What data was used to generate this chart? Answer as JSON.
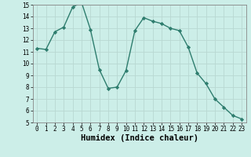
{
  "x": [
    0,
    1,
    2,
    3,
    4,
    5,
    6,
    7,
    8,
    9,
    10,
    11,
    12,
    13,
    14,
    15,
    16,
    17,
    18,
    19,
    20,
    21,
    22,
    23
  ],
  "y": [
    11.3,
    11.2,
    12.7,
    13.1,
    14.8,
    15.2,
    12.9,
    9.5,
    7.9,
    8.0,
    9.4,
    12.8,
    13.9,
    13.6,
    13.4,
    13.0,
    12.8,
    11.4,
    9.2,
    8.3,
    7.0,
    6.3,
    5.6,
    5.3
  ],
  "xlabel": "Humidex (Indice chaleur)",
  "ylim": [
    5,
    15
  ],
  "xlim": [
    -0.5,
    23.5
  ],
  "yticks": [
    5,
    6,
    7,
    8,
    9,
    10,
    11,
    12,
    13,
    14,
    15
  ],
  "xticks": [
    0,
    1,
    2,
    3,
    4,
    5,
    6,
    7,
    8,
    9,
    10,
    11,
    12,
    13,
    14,
    15,
    16,
    17,
    18,
    19,
    20,
    21,
    22,
    23
  ],
  "line_color": "#2e7d6e",
  "marker": "D",
  "marker_size": 2.2,
  "bg_color": "#cceee8",
  "grid_color": "#b8d8d2",
  "xlabel_fontsize": 7.5,
  "tick_fontsize": 5.5,
  "linewidth": 1.0
}
